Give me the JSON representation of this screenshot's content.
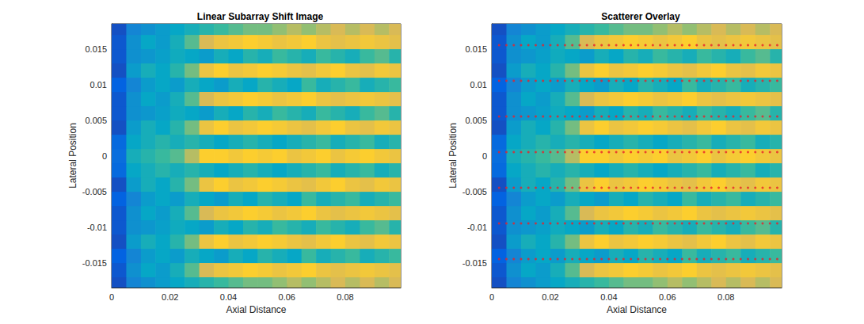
{
  "chart_data": {
    "type": "heatmap",
    "x_label": "Axial Distance",
    "y_label": "Lateral Position",
    "xlim": [
      0,
      0.099
    ],
    "ylim": [
      -0.0185,
      0.0185
    ],
    "xticks": [
      0,
      0.02,
      0.04,
      0.06,
      0.08
    ],
    "yticks": [
      -0.015,
      -0.01,
      -0.005,
      0,
      0.005,
      0.01,
      0.015
    ],
    "grid": false,
    "clim": [
      0,
      1
    ],
    "axial_edges": [
      0,
      0.005,
      0.01,
      0.015,
      0.02,
      0.025,
      0.03,
      0.035,
      0.04,
      0.045,
      0.05,
      0.055,
      0.06,
      0.065,
      0.07,
      0.075,
      0.08,
      0.085,
      0.09,
      0.095,
      0.1
    ],
    "lateral_edges": [
      -0.019,
      -0.017,
      -0.015,
      -0.013,
      -0.011,
      -0.009,
      -0.007,
      -0.005,
      -0.003,
      -0.001,
      0.001,
      0.003,
      0.005,
      0.007,
      0.009,
      0.011,
      0.013,
      0.015,
      0.017,
      0.019
    ],
    "cells": [
      [
        0.1,
        0.3,
        0.35,
        0.4,
        0.45,
        0.5,
        0.55,
        0.6,
        0.65,
        0.7,
        0.7,
        0.75,
        0.8,
        0.75,
        0.8,
        0.85,
        0.8,
        0.85,
        0.8,
        0.85
      ],
      [
        0.12,
        0.35,
        0.45,
        0.4,
        0.5,
        0.65,
        0.85,
        0.9,
        0.92,
        0.95,
        0.93,
        0.9,
        0.92,
        0.95,
        0.9,
        0.88,
        0.9,
        0.92,
        0.9,
        0.88
      ],
      [
        0.15,
        0.3,
        0.4,
        0.45,
        0.4,
        0.5,
        0.45,
        0.4,
        0.5,
        0.45,
        0.55,
        0.5,
        0.45,
        0.6,
        0.5,
        0.55,
        0.6,
        0.5,
        0.55,
        0.6
      ],
      [
        0.1,
        0.4,
        0.5,
        0.45,
        0.55,
        0.7,
        0.9,
        0.95,
        0.9,
        0.92,
        0.95,
        0.93,
        0.9,
        0.88,
        0.92,
        0.95,
        0.9,
        0.88,
        0.92,
        0.9
      ],
      [
        0.12,
        0.35,
        0.38,
        0.42,
        0.48,
        0.45,
        0.4,
        0.5,
        0.45,
        0.55,
        0.5,
        0.6,
        0.55,
        0.5,
        0.6,
        0.55,
        0.5,
        0.6,
        0.65,
        0.55
      ],
      [
        0.12,
        0.35,
        0.45,
        0.4,
        0.5,
        0.65,
        0.85,
        0.9,
        0.92,
        0.95,
        0.93,
        0.9,
        0.92,
        0.95,
        0.9,
        0.88,
        0.9,
        0.92,
        0.9,
        0.88
      ],
      [
        0.15,
        0.3,
        0.4,
        0.45,
        0.4,
        0.5,
        0.45,
        0.4,
        0.5,
        0.45,
        0.55,
        0.5,
        0.45,
        0.6,
        0.5,
        0.55,
        0.6,
        0.5,
        0.55,
        0.6
      ],
      [
        0.1,
        0.4,
        0.5,
        0.45,
        0.55,
        0.7,
        0.9,
        0.95,
        0.9,
        0.92,
        0.95,
        0.93,
        0.9,
        0.88,
        0.92,
        0.95,
        0.9,
        0.88,
        0.92,
        0.9
      ],
      [
        0.18,
        0.45,
        0.5,
        0.55,
        0.5,
        0.55,
        0.5,
        0.45,
        0.5,
        0.55,
        0.5,
        0.45,
        0.5,
        0.55,
        0.6,
        0.5,
        0.55,
        0.6,
        0.5,
        0.55
      ],
      [
        0.2,
        0.5,
        0.55,
        0.6,
        0.65,
        0.8,
        0.95,
        0.95,
        0.92,
        0.95,
        0.93,
        0.95,
        0.9,
        0.92,
        0.95,
        0.9,
        0.93,
        0.95,
        0.92,
        0.9
      ],
      [
        0.18,
        0.45,
        0.5,
        0.55,
        0.5,
        0.55,
        0.5,
        0.45,
        0.5,
        0.55,
        0.5,
        0.45,
        0.5,
        0.55,
        0.6,
        0.5,
        0.55,
        0.6,
        0.5,
        0.55
      ],
      [
        0.1,
        0.4,
        0.5,
        0.45,
        0.55,
        0.7,
        0.9,
        0.95,
        0.9,
        0.92,
        0.95,
        0.93,
        0.9,
        0.88,
        0.92,
        0.95,
        0.9,
        0.88,
        0.92,
        0.9
      ],
      [
        0.12,
        0.35,
        0.38,
        0.42,
        0.48,
        0.45,
        0.4,
        0.5,
        0.45,
        0.55,
        0.5,
        0.6,
        0.55,
        0.5,
        0.6,
        0.55,
        0.5,
        0.6,
        0.65,
        0.55
      ],
      [
        0.12,
        0.35,
        0.45,
        0.4,
        0.5,
        0.65,
        0.85,
        0.9,
        0.92,
        0.95,
        0.93,
        0.9,
        0.92,
        0.95,
        0.9,
        0.88,
        0.9,
        0.92,
        0.9,
        0.88
      ],
      [
        0.15,
        0.3,
        0.4,
        0.45,
        0.4,
        0.5,
        0.45,
        0.4,
        0.5,
        0.45,
        0.55,
        0.5,
        0.45,
        0.6,
        0.5,
        0.55,
        0.6,
        0.5,
        0.55,
        0.6
      ],
      [
        0.1,
        0.4,
        0.5,
        0.45,
        0.55,
        0.7,
        0.9,
        0.95,
        0.9,
        0.92,
        0.95,
        0.93,
        0.9,
        0.88,
        0.92,
        0.95,
        0.9,
        0.88,
        0.92,
        0.9
      ],
      [
        0.12,
        0.35,
        0.38,
        0.42,
        0.48,
        0.45,
        0.4,
        0.5,
        0.45,
        0.55,
        0.5,
        0.6,
        0.55,
        0.5,
        0.6,
        0.55,
        0.5,
        0.6,
        0.65,
        0.55
      ],
      [
        0.12,
        0.35,
        0.45,
        0.4,
        0.5,
        0.65,
        0.85,
        0.9,
        0.92,
        0.95,
        0.93,
        0.9,
        0.92,
        0.95,
        0.9,
        0.88,
        0.9,
        0.92,
        0.9,
        0.88
      ],
      [
        0.1,
        0.3,
        0.35,
        0.4,
        0.45,
        0.5,
        0.55,
        0.6,
        0.65,
        0.7,
        0.7,
        0.75,
        0.8,
        0.75,
        0.8,
        0.85,
        0.8,
        0.85,
        0.8,
        0.85
      ]
    ],
    "panels": [
      {
        "title": "Linear Subarray Shift Image"
      },
      {
        "title": "Scatterer Overlay",
        "scatterers": {
          "type": "scatter",
          "marker": "circle",
          "color": "#e8202a",
          "axial": [
            0.0025,
            0.005,
            0.0075,
            0.01,
            0.0125,
            0.015,
            0.0175,
            0.02,
            0.0225,
            0.025,
            0.0275,
            0.03,
            0.0325,
            0.035,
            0.0375,
            0.04,
            0.0425,
            0.045,
            0.0475,
            0.05,
            0.0525,
            0.055,
            0.0575,
            0.06,
            0.0625,
            0.065,
            0.0675,
            0.07,
            0.0725,
            0.075,
            0.0775,
            0.08,
            0.0825,
            0.085,
            0.0875,
            0.09,
            0.0925,
            0.095,
            0.0975
          ],
          "lateral": [
            0.0155,
            0.0105,
            0.0055,
            0.0005,
            -0.0045,
            -0.0095,
            -0.0145
          ]
        }
      }
    ]
  }
}
